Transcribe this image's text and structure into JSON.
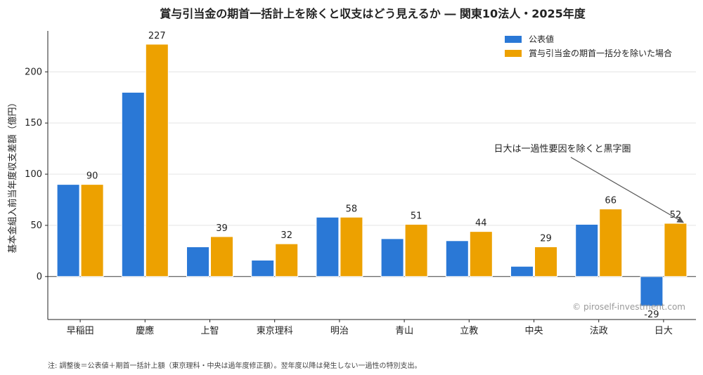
{
  "chart_data": {
    "type": "bar",
    "title": "賞与引当金の期首一括計上を除くと収支はどう見えるか ― 関東10法人・2025年度",
    "ylabel": "基本金組入前当年度収支差額（億円）",
    "xlabel": "",
    "ylim": [
      -42,
      240
    ],
    "yticks": [
      0,
      50,
      100,
      150,
      200
    ],
    "categories": [
      "早稲田",
      "慶應",
      "上智",
      "東京理科",
      "明治",
      "青山",
      "立教",
      "中央",
      "法政",
      "日大"
    ],
    "series": [
      {
        "name": "公表値",
        "color": "#2a78d6",
        "values": [
          90,
          180,
          29,
          16,
          58,
          37,
          35,
          10,
          51,
          -29
        ]
      },
      {
        "name": "賞与引当金の期首一括分を除いた場合",
        "color": "#eda100",
        "values": [
          90,
          227,
          39,
          32,
          58,
          51,
          44,
          29,
          66,
          52
        ]
      }
    ],
    "data_labels": {
      "series_index": 1,
      "labels": [
        "90",
        "227",
        "39",
        "32",
        "58",
        "51",
        "44",
        "29",
        "66",
        "52"
      ],
      "negative_label": {
        "category_index": 9,
        "text": "-29"
      }
    },
    "legend_position": "top-right",
    "grid": "horizontal",
    "annotation": {
      "text": "日大は一過性要因を除くと黒字圏",
      "target_category": "日大",
      "target_value": 52
    }
  },
  "watermark": "© piroself-investment.com",
  "note": "注: 調整後＝公表値＋期首一括計上額（東京理科・中央は過年度修正額）。翌年度以降は発生しない一過性の特別支出。"
}
